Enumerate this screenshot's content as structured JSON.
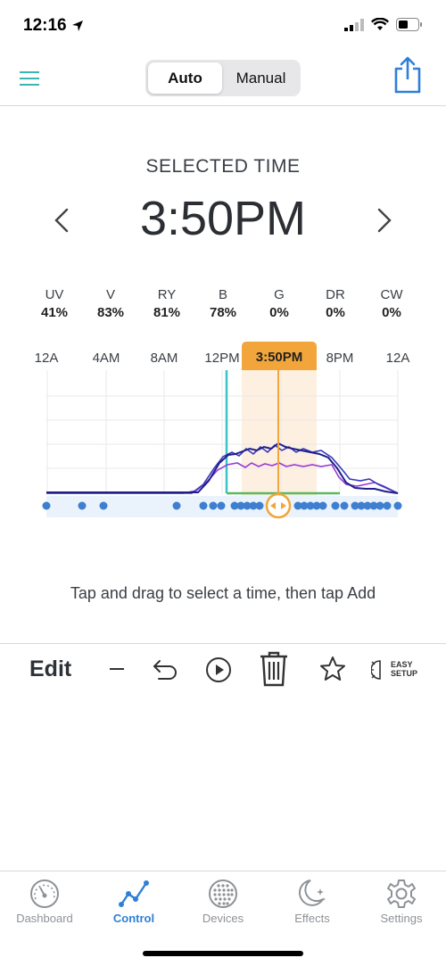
{
  "status_bar": {
    "time": "12:16"
  },
  "header": {
    "mode_auto_label": "Auto",
    "mode_manual_label": "Manual",
    "menu_icon": "hamburger-icon",
    "share_icon": "share-icon"
  },
  "selected": {
    "label": "SELECTED TIME",
    "time": "3:50PM"
  },
  "channels": [
    {
      "name": "UV",
      "value": "41%"
    },
    {
      "name": "V",
      "value": "83%"
    },
    {
      "name": "RY",
      "value": "81%"
    },
    {
      "name": "B",
      "value": "78%"
    },
    {
      "name": "G",
      "value": "0%"
    },
    {
      "name": "DR",
      "value": "0%"
    },
    {
      "name": "CW",
      "value": "0%"
    }
  ],
  "chart_data": {
    "type": "line",
    "x_ticks": [
      "12A",
      "4AM",
      "8AM",
      "12PM",
      "3:50PM",
      "8PM",
      "12A"
    ],
    "selected_time": "3:50PM",
    "colors": {
      "accent": "#f1a53a",
      "teal": "#3bc4c4",
      "green": "#5cb85c",
      "blue": "#2a2aa8",
      "purple": "#9a3ad6",
      "dots": "#3f7fd0"
    }
  },
  "hint": "Tap and drag to select a time, then tap Add",
  "toolbar": {
    "edit_label": "Edit",
    "easy_setup_line1": "EASY",
    "easy_setup_line2": "SETUP"
  },
  "tabs": [
    {
      "label": "Dashboard",
      "icon": "gauge-icon"
    },
    {
      "label": "Control",
      "icon": "graph-icon"
    },
    {
      "label": "Devices",
      "icon": "led-grid-icon"
    },
    {
      "label": "Effects",
      "icon": "moon-stars-icon"
    },
    {
      "label": "Settings",
      "icon": "gear-icon"
    }
  ]
}
